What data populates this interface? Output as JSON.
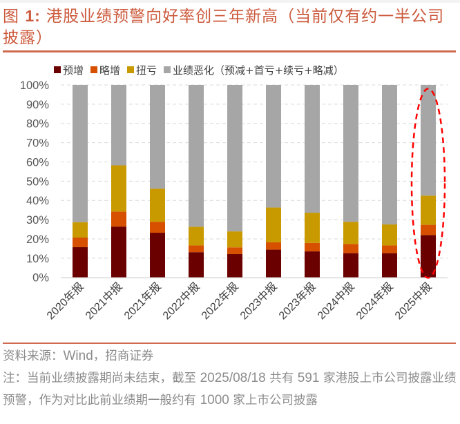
{
  "figure": {
    "title_prefix": "图 ",
    "title_number": "1:",
    "title_text": " 港股业绩预警向好率创三年新高（当前仅有约一半公司披露）",
    "title_color": "#cc5a3c"
  },
  "chart_data": {
    "type": "bar",
    "stacked": true,
    "title": "",
    "xlabel": "",
    "ylabel": "",
    "ylim": [
      0,
      100
    ],
    "y_ticks": [
      "0%",
      "10%",
      "20%",
      "30%",
      "40%",
      "50%",
      "60%",
      "70%",
      "80%",
      "90%",
      "100%"
    ],
    "grid": "dashed horizontal",
    "legend_position": "top",
    "categories": [
      "2020年报",
      "2021中报",
      "2021年报",
      "2022中报",
      "2022年报",
      "2023中报",
      "2023年报",
      "2024中报",
      "2024年报",
      "2025中报"
    ],
    "series": [
      {
        "name": "预增",
        "color": "#6b0000",
        "values": [
          15.7,
          26.4,
          23.2,
          13.1,
          12.1,
          14.4,
          13.5,
          12.6,
          12.6,
          22.0
        ]
      },
      {
        "name": "略增",
        "color": "#d65000",
        "values": [
          5.0,
          7.8,
          5.7,
          3.5,
          3.5,
          3.8,
          4.4,
          4.8,
          4.0,
          5.3
        ]
      },
      {
        "name": "扭亏",
        "color": "#c89a00",
        "values": [
          8.0,
          24.0,
          17.2,
          9.7,
          8.3,
          18.1,
          15.7,
          11.5,
          10.9,
          15.2
        ]
      },
      {
        "name": "业绩恶化（预减+首亏+续亏+略减）",
        "color": "#a6a6a6",
        "values": [
          71.3,
          41.8,
          53.9,
          73.7,
          76.1,
          63.7,
          66.4,
          71.1,
          72.5,
          57.5
        ]
      }
    ],
    "annotation": {
      "type": "dashed-ellipse",
      "color": "#ff0000",
      "target_category": "2025中报"
    }
  },
  "notes": {
    "source_label": "资料来源：",
    "source_latin": "Wind",
    "source_rest": "，招商证券",
    "note_1": "注：当前业绩披露期尚未结束，截至 ",
    "note_date": "2025/08/18",
    "note_2": " 共有 ",
    "note_count": "591",
    "note_3": " 家港股上市公司披露业绩预警，作为对比此前业绩期一般约有 ",
    "note_prev": "1000",
    "note_4": " 家上市公司披露"
  }
}
